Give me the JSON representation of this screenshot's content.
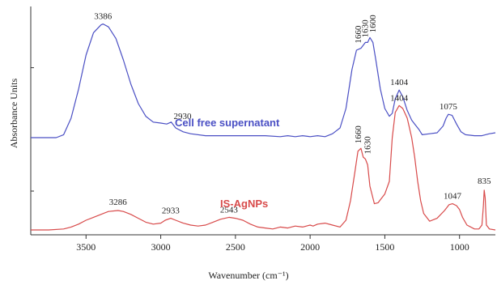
{
  "chart_data": {
    "type": "line",
    "title": "",
    "xlabel": "Wavenumber (cm⁻¹)",
    "ylabel": "Absorbance Units",
    "x_reversed": true,
    "xlim": [
      3870,
      760
    ],
    "ylim": [
      0,
      2.35
    ],
    "x_ticks": [
      3500,
      3000,
      2500,
      2000,
      1500,
      1000
    ],
    "x_tick_labels": [
      "3500",
      "3000",
      "2500",
      "2000",
      "1500",
      "1000"
    ],
    "colors": {
      "cell_free": "#4a4fc4",
      "is_agnps": "#d84a4a",
      "axis": "#333333"
    },
    "series": [
      {
        "name": "Cell free supernatant",
        "color": "#4a4fc4",
        "points": [
          [
            3870,
            1.0
          ],
          [
            3700,
            1.0
          ],
          [
            3650,
            1.03
          ],
          [
            3600,
            1.2
          ],
          [
            3550,
            1.5
          ],
          [
            3500,
            1.85
          ],
          [
            3450,
            2.08
          ],
          [
            3400,
            2.16
          ],
          [
            3386,
            2.17
          ],
          [
            3350,
            2.14
          ],
          [
            3300,
            2.02
          ],
          [
            3250,
            1.8
          ],
          [
            3200,
            1.55
          ],
          [
            3150,
            1.35
          ],
          [
            3100,
            1.22
          ],
          [
            3050,
            1.16
          ],
          [
            3000,
            1.15
          ],
          [
            2960,
            1.14
          ],
          [
            2930,
            1.16
          ],
          [
            2900,
            1.1
          ],
          [
            2850,
            1.06
          ],
          [
            2800,
            1.04
          ],
          [
            2700,
            1.02
          ],
          [
            2600,
            1.02
          ],
          [
            2500,
            1.02
          ],
          [
            2300,
            1.02
          ],
          [
            2200,
            1.01
          ],
          [
            2150,
            1.02
          ],
          [
            2100,
            1.01
          ],
          [
            2050,
            1.02
          ],
          [
            2000,
            1.01
          ],
          [
            1950,
            1.02
          ],
          [
            1900,
            1.01
          ],
          [
            1850,
            1.04
          ],
          [
            1800,
            1.1
          ],
          [
            1760,
            1.3
          ],
          [
            1720,
            1.7
          ],
          [
            1690,
            1.9
          ],
          [
            1660,
            1.92
          ],
          [
            1640,
            1.96
          ],
          [
            1630,
            1.98
          ],
          [
            1615,
            1.98
          ],
          [
            1600,
            2.03
          ],
          [
            1580,
            1.98
          ],
          [
            1560,
            1.8
          ],
          [
            1530,
            1.5
          ],
          [
            1500,
            1.3
          ],
          [
            1470,
            1.22
          ],
          [
            1450,
            1.25
          ],
          [
            1430,
            1.4
          ],
          [
            1404,
            1.49
          ],
          [
            1380,
            1.42
          ],
          [
            1350,
            1.28
          ],
          [
            1320,
            1.18
          ],
          [
            1300,
            1.14
          ],
          [
            1270,
            1.08
          ],
          [
            1250,
            1.03
          ],
          [
            1200,
            1.04
          ],
          [
            1150,
            1.05
          ],
          [
            1110,
            1.12
          ],
          [
            1090,
            1.2
          ],
          [
            1075,
            1.24
          ],
          [
            1050,
            1.23
          ],
          [
            1020,
            1.14
          ],
          [
            990,
            1.06
          ],
          [
            960,
            1.03
          ],
          [
            900,
            1.02
          ],
          [
            850,
            1.02
          ],
          [
            800,
            1.04
          ],
          [
            760,
            1.05
          ]
        ],
        "peaks": [
          {
            "x": 3386,
            "label": "3386"
          },
          {
            "x": 2930,
            "label": "2930"
          },
          {
            "x": 1660,
            "label": "1660"
          },
          {
            "x": 1630,
            "label": "1630"
          },
          {
            "x": 1600,
            "label": "1600"
          },
          {
            "x": 1404,
            "label": "1404"
          },
          {
            "x": 1075,
            "label": "1075"
          }
        ]
      },
      {
        "name": "IS-AgNPs",
        "color": "#d84a4a",
        "points": [
          [
            3870,
            0.05
          ],
          [
            3750,
            0.05
          ],
          [
            3650,
            0.06
          ],
          [
            3600,
            0.08
          ],
          [
            3550,
            0.11
          ],
          [
            3500,
            0.15
          ],
          [
            3450,
            0.18
          ],
          [
            3400,
            0.21
          ],
          [
            3350,
            0.24
          ],
          [
            3286,
            0.25
          ],
          [
            3250,
            0.24
          ],
          [
            3200,
            0.21
          ],
          [
            3150,
            0.17
          ],
          [
            3100,
            0.13
          ],
          [
            3050,
            0.11
          ],
          [
            3000,
            0.12
          ],
          [
            2970,
            0.15
          ],
          [
            2933,
            0.17
          ],
          [
            2900,
            0.15
          ],
          [
            2850,
            0.12
          ],
          [
            2800,
            0.1
          ],
          [
            2750,
            0.09
          ],
          [
            2700,
            0.1
          ],
          [
            2650,
            0.13
          ],
          [
            2600,
            0.16
          ],
          [
            2543,
            0.18
          ],
          [
            2500,
            0.17
          ],
          [
            2450,
            0.15
          ],
          [
            2400,
            0.11
          ],
          [
            2350,
            0.08
          ],
          [
            2300,
            0.07
          ],
          [
            2250,
            0.06
          ],
          [
            2200,
            0.08
          ],
          [
            2150,
            0.07
          ],
          [
            2100,
            0.09
          ],
          [
            2050,
            0.08
          ],
          [
            2000,
            0.1
          ],
          [
            1980,
            0.09
          ],
          [
            1950,
            0.11
          ],
          [
            1900,
            0.12
          ],
          [
            1850,
            0.1
          ],
          [
            1800,
            0.08
          ],
          [
            1760,
            0.15
          ],
          [
            1730,
            0.35
          ],
          [
            1700,
            0.65
          ],
          [
            1680,
            0.86
          ],
          [
            1660,
            0.89
          ],
          [
            1645,
            0.8
          ],
          [
            1630,
            0.78
          ],
          [
            1615,
            0.72
          ],
          [
            1600,
            0.5
          ],
          [
            1570,
            0.32
          ],
          [
            1545,
            0.33
          ],
          [
            1520,
            0.38
          ],
          [
            1500,
            0.42
          ],
          [
            1470,
            0.55
          ],
          [
            1450,
            1.0
          ],
          [
            1430,
            1.26
          ],
          [
            1404,
            1.33
          ],
          [
            1380,
            1.3
          ],
          [
            1350,
            1.2
          ],
          [
            1320,
            1.0
          ],
          [
            1300,
            0.8
          ],
          [
            1280,
            0.55
          ],
          [
            1260,
            0.35
          ],
          [
            1240,
            0.22
          ],
          [
            1200,
            0.14
          ],
          [
            1150,
            0.17
          ],
          [
            1100,
            0.25
          ],
          [
            1070,
            0.31
          ],
          [
            1047,
            0.32
          ],
          [
            1020,
            0.3
          ],
          [
            1000,
            0.26
          ],
          [
            980,
            0.18
          ],
          [
            950,
            0.1
          ],
          [
            900,
            0.06
          ],
          [
            870,
            0.06
          ],
          [
            850,
            0.1
          ],
          [
            840,
            0.3
          ],
          [
            835,
            0.46
          ],
          [
            828,
            0.38
          ],
          [
            820,
            0.1
          ],
          [
            800,
            0.06
          ],
          [
            760,
            0.05
          ]
        ],
        "peaks": [
          {
            "x": 3286,
            "label": "3286"
          },
          {
            "x": 2933,
            "label": "2933"
          },
          {
            "x": 2543,
            "label": "2543"
          },
          {
            "x": 1660,
            "label": "1660"
          },
          {
            "x": 1630,
            "label": "1630"
          },
          {
            "x": 1404,
            "label": "1404"
          },
          {
            "x": 1047,
            "label": "1047"
          },
          {
            "x": 835,
            "label": "835"
          }
        ]
      }
    ]
  }
}
